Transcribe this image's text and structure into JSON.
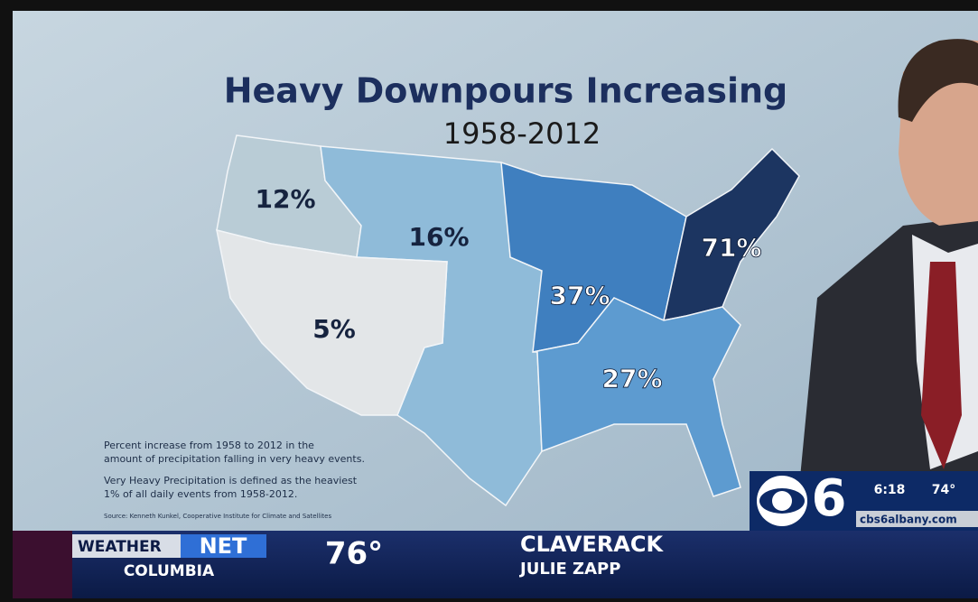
{
  "title": "Heavy Downpours Increasing",
  "subtitle": "1958-2012",
  "regions": [
    {
      "label": "12%",
      "color": "#b9ccd6"
    },
    {
      "label": "16%",
      "color": "#8fbbd9"
    },
    {
      "label": "5%",
      "color": "#e3e6e8"
    },
    {
      "label": "37%",
      "color": "#3f7fbf"
    },
    {
      "label": "71%",
      "color": "#1c3561"
    },
    {
      "label": "27%",
      "color": "#5d9bd0"
    }
  ],
  "notes": [
    "Percent increase from 1958 to 2012 in the",
    "amount of precipitation falling in very heavy events.",
    "Very Heavy Precipitation is defined as the heaviest",
    "1% of all daily events from 1958-2012.",
    "Source: Kenneth Kunkel, Cooperative Institute for Climate and Satellites"
  ],
  "ticker": {
    "brand_a": "WEATHER",
    "brand_b": "NET",
    "location": "COLUMBIA",
    "temperature": "76°",
    "headline": "CLAVERACK",
    "reporter": "JULIE ZAPP"
  },
  "bug": {
    "channel": "6",
    "time": "6:18",
    "temperature": "74°",
    "url": "cbs6albany.com"
  }
}
